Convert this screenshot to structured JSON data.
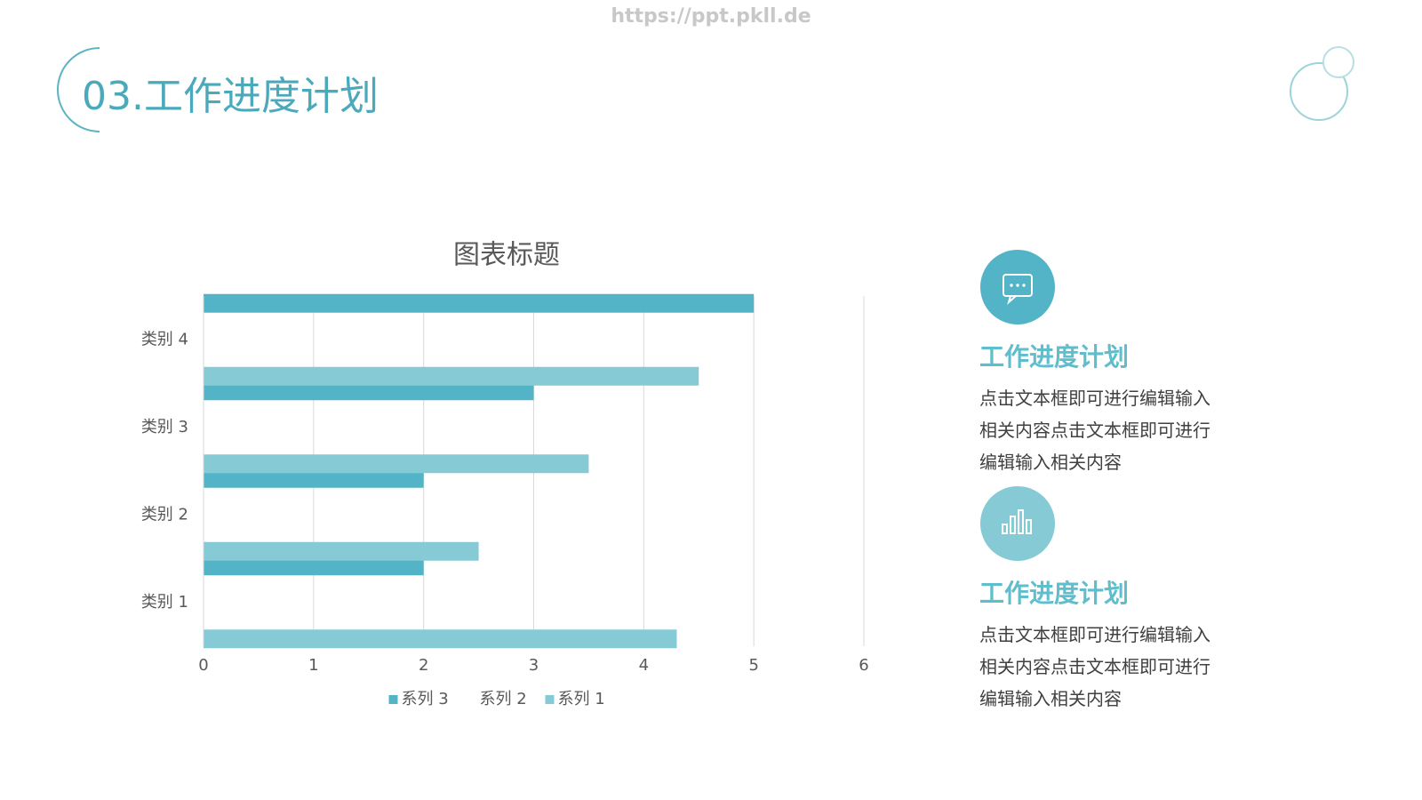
{
  "watermark": "https://ppt.pkll.de",
  "header": {
    "title": "03.工作进度计划"
  },
  "chart_data": {
    "type": "hbar",
    "title": "图表标题",
    "categories": [
      "类别 1",
      "类别 2",
      "类别 3",
      "类别 4"
    ],
    "series": [
      {
        "name": "系列 1",
        "color": "#85cad5",
        "values": [
          4.3,
          2.5,
          3.5,
          4.5
        ]
      },
      {
        "name": "系列 2",
        "color": "#ffffff",
        "values": [
          null,
          null,
          null,
          null
        ]
      },
      {
        "name": "系列 3",
        "color": "#52b4c6",
        "values": [
          2,
          2,
          3,
          5
        ]
      }
    ],
    "xlim": [
      0,
      6
    ],
    "xticks": [
      0,
      1,
      2,
      3,
      4,
      5,
      6
    ],
    "grid": true,
    "legend": "bottom"
  },
  "side": [
    {
      "heading": "工作进度计划",
      "body": "点击文本框即可进行编辑输入相关内容点击文本框即可进行编辑输入相关内容"
    },
    {
      "heading": "工作进度计划",
      "body": "点击文本框即可进行编辑输入相关内容点击文本框即可进行编辑输入相关内容"
    }
  ]
}
